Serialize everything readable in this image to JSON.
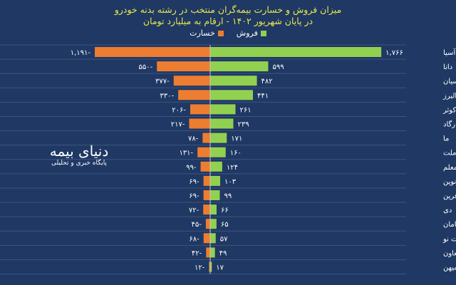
{
  "chart_data": {
    "type": "bar",
    "orientation": "horizontal-diverging",
    "title": "میزان فروش و خسارت بیمه‌گران منتخب در رشته بدنه خودرو",
    "subtitle": "در پایان شهریور ۱۴۰۲ - ارقام به میلیارد تومان",
    "legend": {
      "placement": "top",
      "items": [
        {
          "name": "فروش",
          "color": "#92d050"
        },
        {
          "name": "خسارت",
          "color": "#ed7d31"
        }
      ]
    },
    "categories": [
      "آسیا",
      "دانا",
      "پارسیان",
      "البرز",
      "کوثر",
      "پاسارگاد",
      "ما",
      "ملت",
      "معلم",
      "نوین",
      "کارآفرین",
      "دی",
      "سامان",
      "تجارت نو",
      "تعاون",
      "میهن"
    ],
    "series": [
      {
        "name": "فروش",
        "color": "#92d050",
        "values": [
          1766,
          599,
          482,
          441,
          261,
          239,
          171,
          160,
          124,
          103,
          99,
          66,
          65,
          57,
          49,
          17
        ],
        "labels": [
          "۱,۷۶۶",
          "۵۹۹",
          "۴۸۲",
          "۴۴۱",
          "۲۶۱",
          "۲۳۹",
          "۱۷۱",
          "۱۶۰",
          "۱۲۴",
          "۱۰۳",
          "۹۹",
          "۶۶",
          "۶۵",
          "۵۷",
          "۴۹",
          "۱۷"
        ]
      },
      {
        "name": "خسارت",
        "color": "#ed7d31",
        "values": [
          -1191,
          -550,
          -377,
          -330,
          -206,
          -217,
          -78,
          -131,
          -99,
          -69,
          -69,
          -72,
          -45,
          -68,
          -42,
          -12
        ],
        "labels": [
          "۱,۱۹۱-",
          "۵۵۰-",
          "۳۷۷-",
          "۳۳۰-",
          "۲۰۶-",
          "۲۱۷-",
          "۷۸-",
          "۱۳۱-",
          "۹۹-",
          "۶۹-",
          "۶۹-",
          "۷۲-",
          "۴۵-",
          "۶۸-",
          "۴۲-",
          "۱۲-"
        ]
      }
    ],
    "grid": true
  },
  "watermark": {
    "name": "دنیای بیمه",
    "tagline": "پایگاه خبری و تحلیلی"
  },
  "colors": {
    "background": "#1f3864",
    "title": "#e8e84a"
  }
}
